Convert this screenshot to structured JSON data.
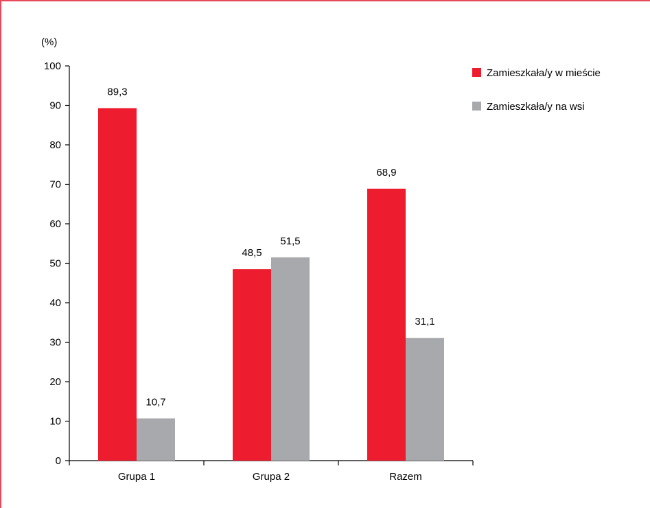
{
  "chart_data": {
    "type": "bar",
    "ylabel": "(%)",
    "ylim": [
      0,
      100
    ],
    "yticks": [
      0,
      10,
      20,
      30,
      40,
      50,
      60,
      70,
      80,
      90,
      100
    ],
    "categories": [
      "Grupa 1",
      "Grupa 2",
      "Razem"
    ],
    "series": [
      {
        "name": "Zamieszkała/y w mieście",
        "color": "#ed1c2e",
        "values": [
          89.3,
          48.5,
          68.9
        ],
        "labels": [
          "89,3",
          "48,5",
          "68,9"
        ]
      },
      {
        "name": "Zamieszkała/y na wsi",
        "color": "#a8a9ad",
        "values": [
          10.7,
          51.5,
          31.1
        ],
        "labels": [
          "10,7",
          "51,5",
          "31,1"
        ]
      }
    ],
    "legend": "top-right",
    "grid": false
  }
}
